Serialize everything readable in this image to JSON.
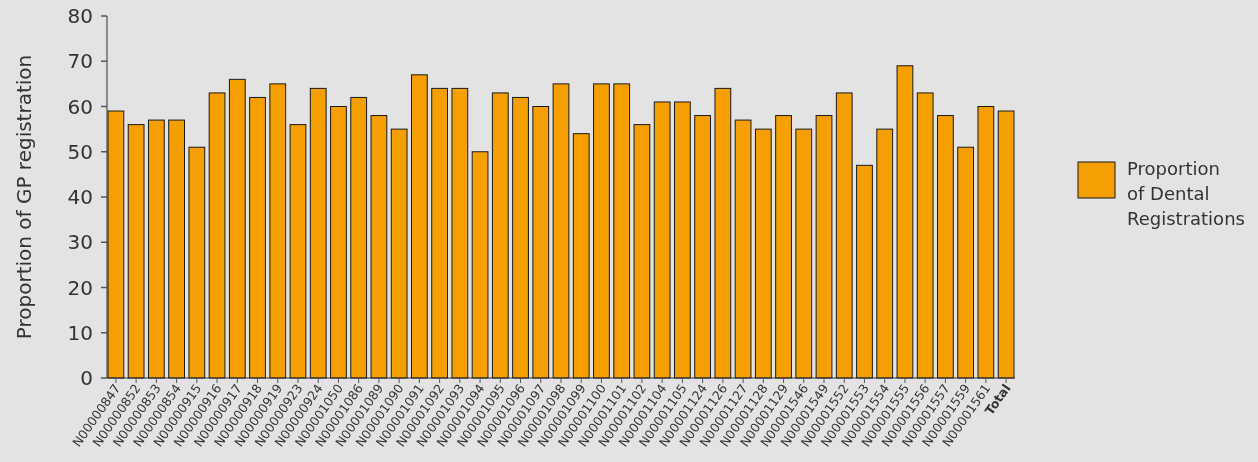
{
  "chart_data": {
    "type": "bar",
    "ylabel": "Proportion of GP registration",
    "categories": [
      "N00000847",
      "N00000852",
      "N00000853",
      "N00000854",
      "N00000915",
      "N00000916",
      "N00000917",
      "N00000918",
      "N00000919",
      "N00000923",
      "N00000924",
      "N00001050",
      "N00001086",
      "N00001089",
      "N00001090",
      "N00001091",
      "N00001092",
      "N00001093",
      "N00001094",
      "N00001095",
      "N00001096",
      "N00001097",
      "N00001098",
      "N00001099",
      "N00001100",
      "N00001101",
      "N00001102",
      "N00001104",
      "N00001105",
      "N00001124",
      "N00001126",
      "N00001127",
      "N00001128",
      "N00001129",
      "N00001546",
      "N00001549",
      "N00001552",
      "N00001553",
      "N00001554",
      "N00001555",
      "N00001556",
      "N00001557",
      "N00001559",
      "N00001561",
      "Total"
    ],
    "series": [
      {
        "name": "Proportion of Dental Registrations",
        "color": "#f59f00",
        "values": [
          59,
          56,
          57,
          57,
          51,
          63,
          66,
          62,
          65,
          56,
          64,
          60,
          62,
          58,
          55,
          67,
          64,
          64,
          50,
          63,
          62,
          60,
          65,
          54,
          65,
          65,
          56,
          61,
          61,
          58,
          64,
          57,
          55,
          58,
          55,
          58,
          63,
          47,
          55,
          69,
          63,
          58,
          51,
          60,
          59
        ]
      }
    ],
    "ylim": [
      0,
      80
    ],
    "yticks": [
      0,
      10,
      20,
      30,
      40,
      50,
      60,
      70,
      80
    ],
    "legend": "right",
    "grid": false
  }
}
